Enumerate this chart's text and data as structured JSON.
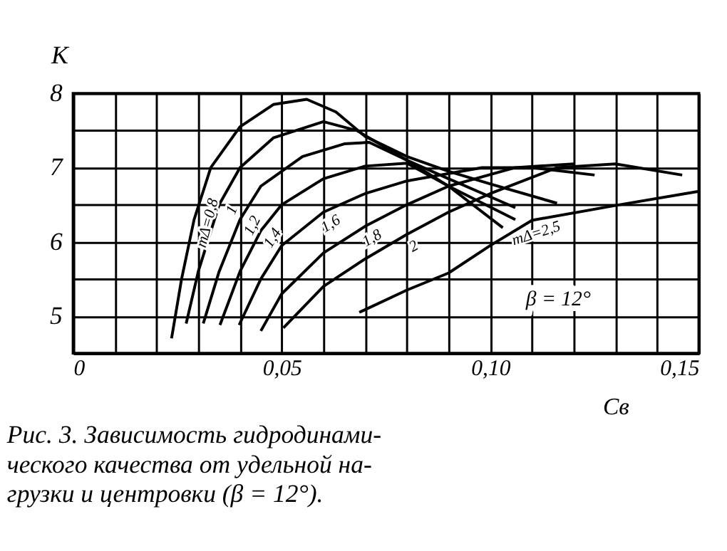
{
  "chart_data": {
    "type": "line",
    "xlabel": "Cв",
    "ylabel": "K",
    "xlim": [
      0,
      0.15
    ],
    "ylim": [
      4.5,
      8
    ],
    "xticks": [
      0,
      {
        "value": 0.01,
        "label": null
      },
      {
        "value": 0.02,
        "label": null
      },
      {
        "value": 0.03,
        "label": null
      },
      {
        "value": 0.04,
        "label": null
      },
      {
        "value": 0.05,
        "label": "0,05"
      },
      {
        "value": 0.06,
        "label": null
      },
      {
        "value": 0.07,
        "label": null
      },
      {
        "value": 0.08,
        "label": null
      },
      {
        "value": 0.09,
        "label": null
      },
      {
        "value": 0.1,
        "label": "0,10"
      },
      {
        "value": 0.11,
        "label": null
      },
      {
        "value": 0.12,
        "label": null
      },
      {
        "value": 0.13,
        "label": null
      },
      {
        "value": 0.14,
        "label": null
      },
      {
        "value": 0.15,
        "label": "0,15"
      }
    ],
    "yticks": [
      {
        "value": 4.5,
        "label": null
      },
      5,
      {
        "value": 5.5,
        "label": null
      },
      6,
      {
        "value": 6.5,
        "label": null
      },
      7,
      {
        "value": 7.5,
        "label": null
      },
      8
    ],
    "grid": true,
    "legend": false,
    "marker": "none",
    "line_style": "solid",
    "series": [
      {
        "name": "mΔ=0,8",
        "color": "#000000",
        "x": [
          0.0236,
          0.026,
          0.029,
          0.033,
          0.04,
          0.048,
          0.056,
          0.063,
          0.07,
          0.08,
          0.09,
          0.1,
          0.116
        ],
        "values": [
          4.7,
          5.5,
          6.3,
          7.0,
          7.55,
          7.85,
          7.92,
          7.75,
          7.42,
          7.15,
          6.95,
          6.78,
          6.52
        ]
      },
      {
        "name": "1",
        "color": "#000000",
        "x": [
          0.0271,
          0.03,
          0.035,
          0.04,
          0.048,
          0.06,
          0.068,
          0.08,
          0.09,
          0.106
        ],
        "values": [
          4.9,
          5.6,
          6.5,
          7.0,
          7.4,
          7.62,
          7.5,
          7.1,
          6.85,
          6.46
        ]
      },
      {
        "name": "1,2",
        "color": "#000000",
        "x": [
          0.0312,
          0.035,
          0.04,
          0.045,
          0.055,
          0.065,
          0.071,
          0.08,
          0.09,
          0.106
        ],
        "values": [
          4.9,
          5.6,
          6.3,
          6.75,
          7.15,
          7.32,
          7.34,
          7.1,
          6.75,
          6.3
        ]
      },
      {
        "name": "1,4",
        "color": "#000000",
        "x": [
          0.0352,
          0.04,
          0.045,
          0.05,
          0.06,
          0.07,
          0.08,
          0.09,
          0.103
        ],
        "values": [
          4.88,
          5.6,
          6.15,
          6.5,
          6.85,
          7.02,
          7.06,
          6.75,
          6.19
        ]
      },
      {
        "name": "1,6",
        "color": "#000000",
        "x": [
          0.0398,
          0.045,
          0.05,
          0.06,
          0.07,
          0.08,
          0.098,
          0.11,
          0.125
        ],
        "values": [
          4.88,
          5.5,
          5.95,
          6.4,
          6.65,
          6.82,
          7.0,
          7.0,
          6.9
        ]
      },
      {
        "name": "1,8",
        "color": "#000000",
        "x": [
          0.045,
          0.05,
          0.06,
          0.07,
          0.08,
          0.09,
          0.106,
          0.12
        ],
        "values": [
          4.8,
          5.3,
          5.85,
          6.21,
          6.5,
          6.75,
          7.0,
          7.05
        ]
      },
      {
        "name": "2",
        "color": "#000000",
        "x": [
          0.0504,
          0.06,
          0.07,
          0.08,
          0.09,
          0.1,
          0.116,
          0.13,
          0.146
        ],
        "values": [
          4.84,
          5.4,
          5.77,
          6.1,
          6.4,
          6.65,
          7.0,
          7.05,
          6.9
        ]
      },
      {
        "name": "mΔ=2,5",
        "color": "#000000",
        "x": [
          0.0686,
          0.08,
          0.09,
          0.1,
          0.11,
          0.13,
          0.15
        ],
        "values": [
          5.05,
          5.35,
          5.58,
          5.95,
          6.29,
          6.49,
          6.68
        ]
      }
    ],
    "annotations": [
      "β = 12°",
      "Рис. 3. Зависимость гидродинами-\nческого качества от удельной на-\nгрузки и центровки (β = 12°)."
    ]
  }
}
